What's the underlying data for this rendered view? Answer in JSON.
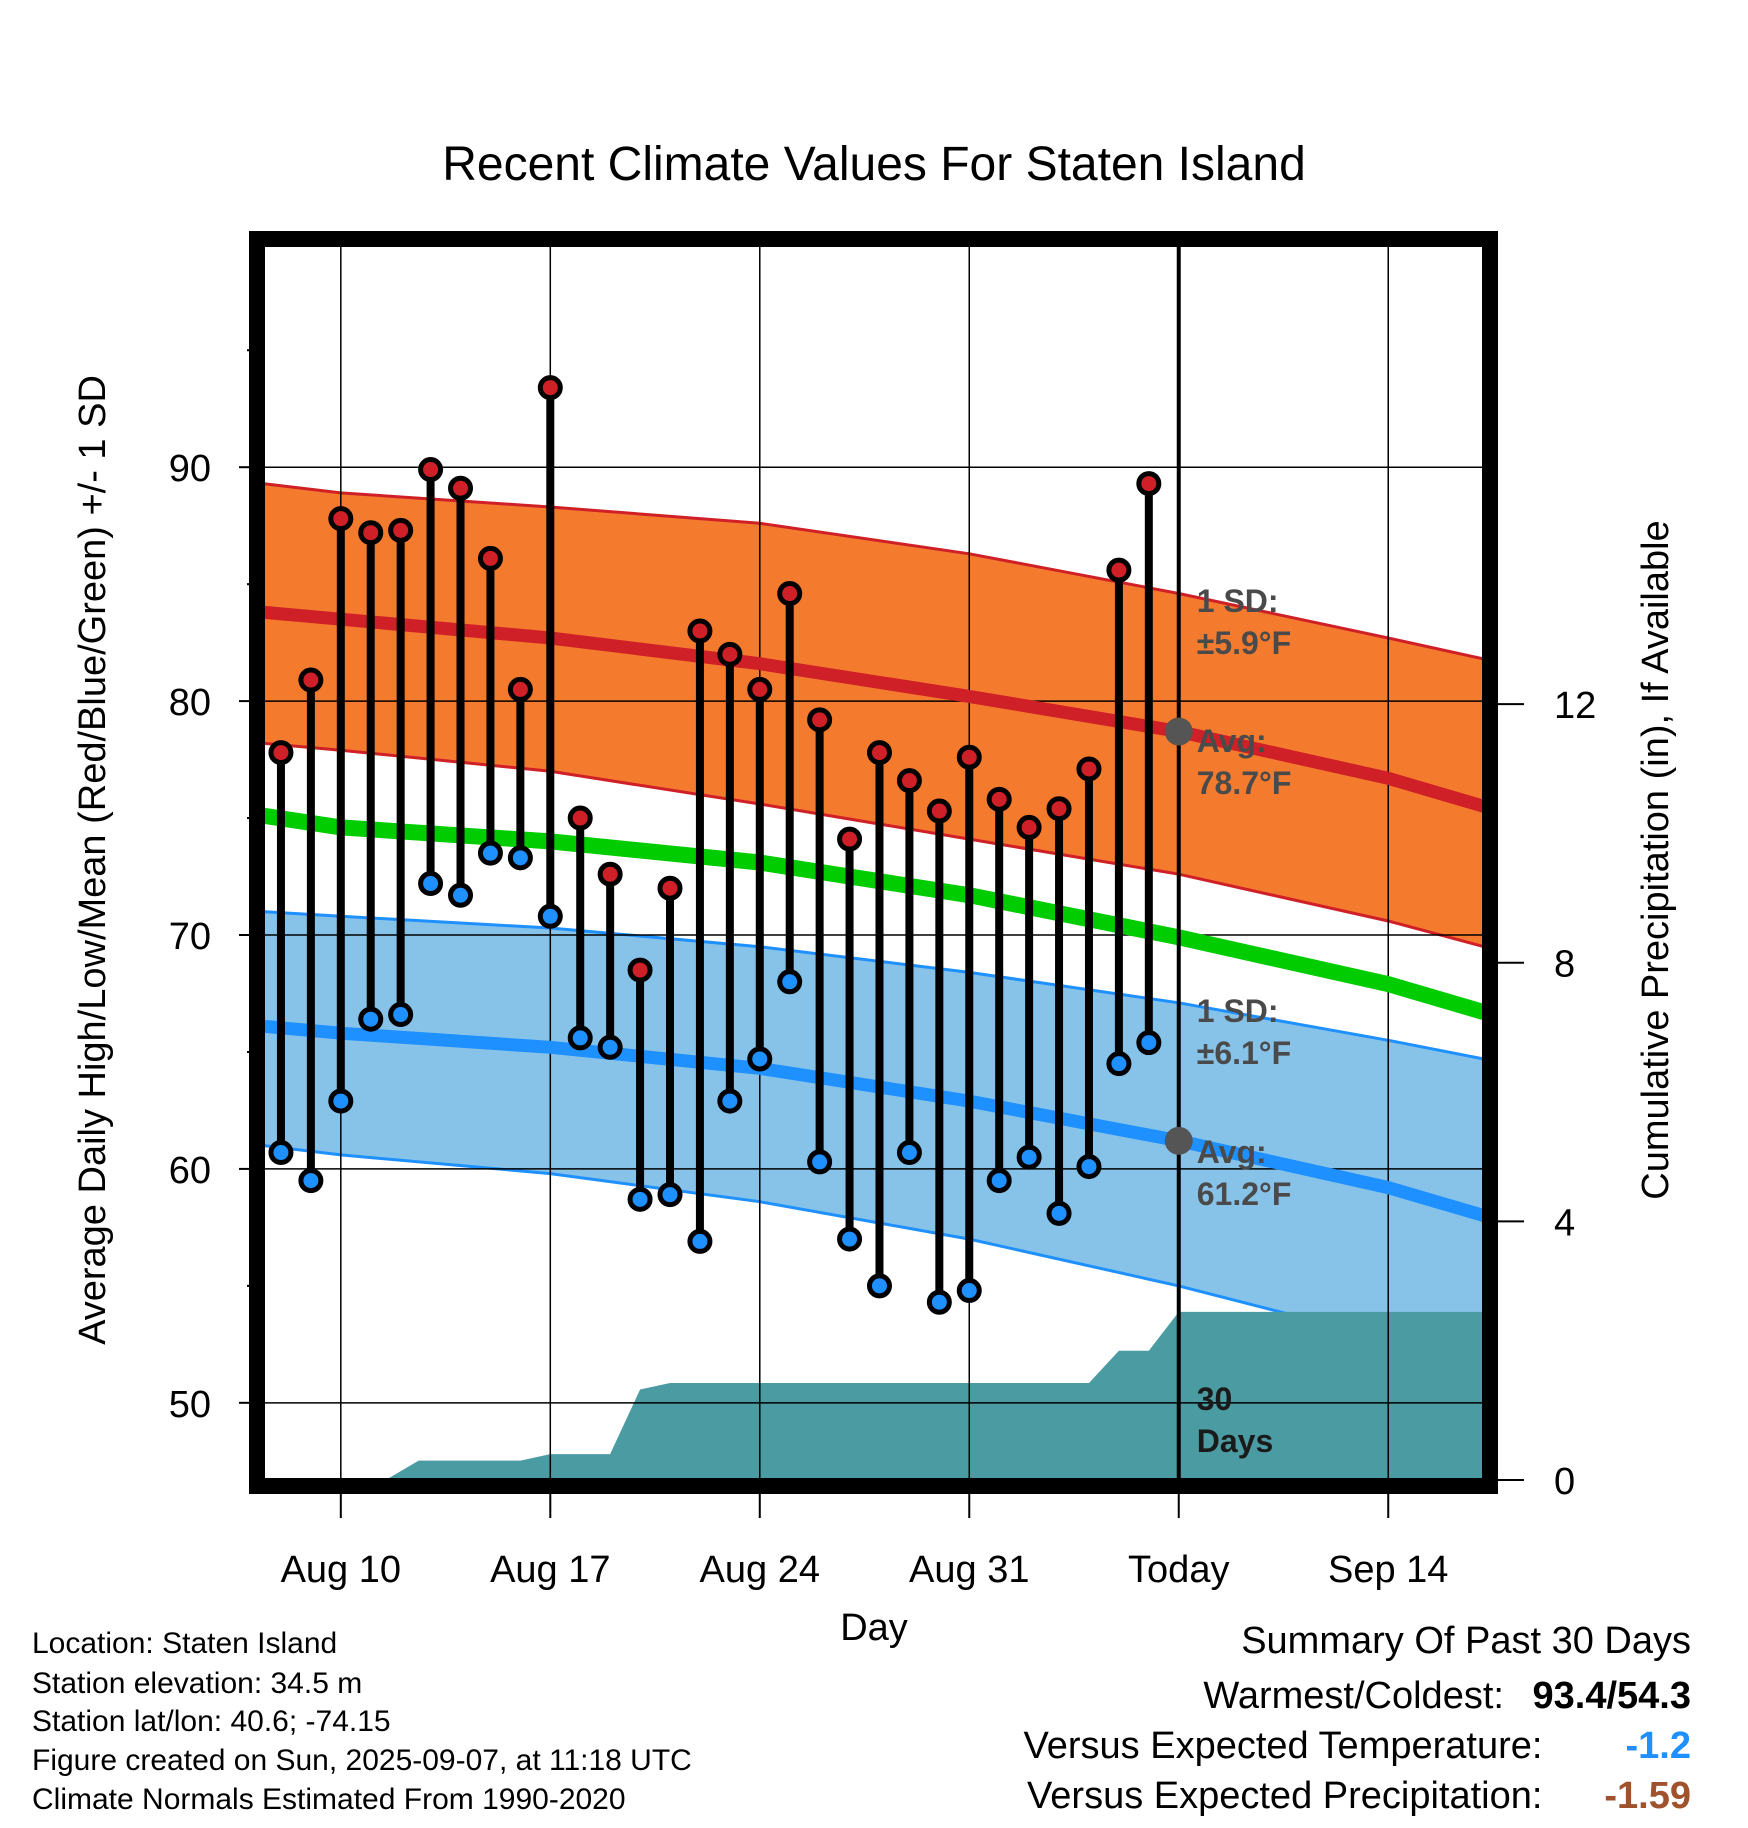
{
  "chart_data": {
    "type": "line",
    "title": "Recent Climate Values For Staten Island",
    "xlabel": "Day",
    "ylabel": "Average Daily High/Low/Mean (Red/Blue/Green) +/- 1 SD",
    "y2label": "Cumulative Precipitation (in), If Available",
    "ylim": [
      46.7,
      99.5
    ],
    "y2lim": [
      0,
      19.1
    ],
    "x_tick_labels": [
      "Aug 10",
      "Aug 17",
      "Aug 24",
      "Aug 31",
      "Today",
      "Sep 14"
    ],
    "x_tick_day_offsets": [
      0,
      7,
      14,
      21,
      28,
      35
    ],
    "xlim_day_offsets": [
      -2.6,
      38.2
    ],
    "y_tick_labels": [
      "50",
      "60",
      "70",
      "80",
      "90"
    ],
    "y2_tick_labels": [
      "0",
      "4",
      "8",
      "12"
    ],
    "days_x": [
      -2,
      -1,
      0,
      1,
      2,
      3,
      4,
      5,
      6,
      7,
      8,
      9,
      10,
      11,
      12,
      13,
      14,
      15,
      16,
      17,
      18,
      19,
      20,
      21,
      22,
      23,
      24,
      25,
      26,
      27
    ],
    "daily_high": [
      77.8,
      80.9,
      87.8,
      87.2,
      87.3,
      89.9,
      89.1,
      86.1,
      80.5,
      93.4,
      75.0,
      72.6,
      68.5,
      72.0,
      83.0,
      82.0,
      80.5,
      84.6,
      79.2,
      74.1,
      77.8,
      76.6,
      75.3,
      77.6,
      75.8,
      74.6,
      75.4,
      77.1,
      85.6,
      89.3
    ],
    "daily_low": [
      60.7,
      59.5,
      62.9,
      66.4,
      66.6,
      72.2,
      71.7,
      73.5,
      73.3,
      70.8,
      65.6,
      65.2,
      58.7,
      58.9,
      56.9,
      62.9,
      64.7,
      68.0,
      60.3,
      57.0,
      55.0,
      60.7,
      54.3,
      54.8,
      59.5,
      60.5,
      58.1,
      60.1,
      64.5,
      65.4
    ],
    "normals_x": [
      -2.6,
      0,
      7,
      14,
      21,
      28,
      35,
      38.2
    ],
    "normal_high_mean": [
      83.8,
      83.5,
      82.7,
      81.6,
      80.2,
      78.7,
      76.7,
      75.5
    ],
    "normal_high_upper": [
      89.3,
      88.9,
      88.3,
      87.6,
      86.3,
      84.6,
      82.7,
      81.8
    ],
    "normal_high_lower": [
      78.2,
      77.9,
      77.0,
      75.6,
      74.1,
      72.6,
      70.6,
      69.5
    ],
    "normal_mean": [
      75.1,
      74.6,
      74.0,
      73.1,
      71.7,
      69.9,
      67.9,
      66.7
    ],
    "normal_low_mean": [
      66.1,
      65.8,
      65.2,
      64.3,
      62.9,
      61.2,
      59.2,
      58.0
    ],
    "normal_low_upper": [
      71.0,
      70.8,
      70.3,
      69.5,
      68.4,
      67.1,
      65.5,
      64.7
    ],
    "normal_low_lower": [
      61.0,
      60.6,
      59.8,
      58.6,
      57.0,
      55.0,
      52.7,
      51.5
    ],
    "precip_x": [
      -2.6,
      0,
      1.5,
      2.6,
      4,
      6,
      7,
      8,
      9,
      10,
      11,
      12,
      13,
      14,
      15,
      16,
      17,
      18,
      19,
      20,
      21,
      22,
      23,
      24,
      25,
      26,
      27,
      28,
      30,
      32,
      34,
      36,
      38.2
    ],
    "precip_cum": [
      0,
      0,
      0,
      0.3,
      0.3,
      0.3,
      0.4,
      0.4,
      0.4,
      1.4,
      1.5,
      1.5,
      1.5,
      1.5,
      1.5,
      1.5,
      1.5,
      1.5,
      1.5,
      1.5,
      1.5,
      1.5,
      1.5,
      1.5,
      1.5,
      2.0,
      2.0,
      2.6,
      2.6,
      2.6,
      2.6,
      2.6,
      2.6
    ],
    "today_x": 28,
    "annotations": {
      "high_sd": [
        "1 SD:",
        "±5.9°F"
      ],
      "high_avg": [
        "Avg:",
        "78.7°F"
      ],
      "low_sd": [
        "1 SD:",
        "±6.1°F"
      ],
      "low_avg": [
        "Avg:",
        "61.2°F"
      ],
      "precip_window": [
        "30",
        "Days"
      ],
      "high_avg_value": 78.7,
      "low_avg_value": 61.2
    },
    "colors": {
      "high_band": "#f47a2e",
      "high_line": "#cf2027",
      "low_band": "#87c3e8",
      "low_line": "#1e90ff",
      "mean_line": "#00cc00",
      "precip": "#4a9ba2",
      "high_marker": "#cf2027",
      "low_marker": "#1e90ff",
      "avg_marker": "#555555"
    }
  },
  "info": {
    "location": "Location: Staten Island",
    "elevation": "Station elevation: 34.5 m",
    "latlon": "Station lat/lon: 40.6; -74.15",
    "created": "Figure created on Sun, 2025-09-07, at 11:18 UTC",
    "normals": "Climate Normals Estimated From 1990-2020"
  },
  "summary": {
    "title": "Summary Of Past 30 Days",
    "warmest_label": "Warmest/Coldest:",
    "warmest_value": "93.4/54.3",
    "temp_label": "Versus Expected Temperature:",
    "temp_value": "-1.2",
    "temp_color": "#1e90ff",
    "precip_label": "Versus Expected Precipitation:",
    "precip_value": "-1.59",
    "precip_color": "#a0522d"
  }
}
